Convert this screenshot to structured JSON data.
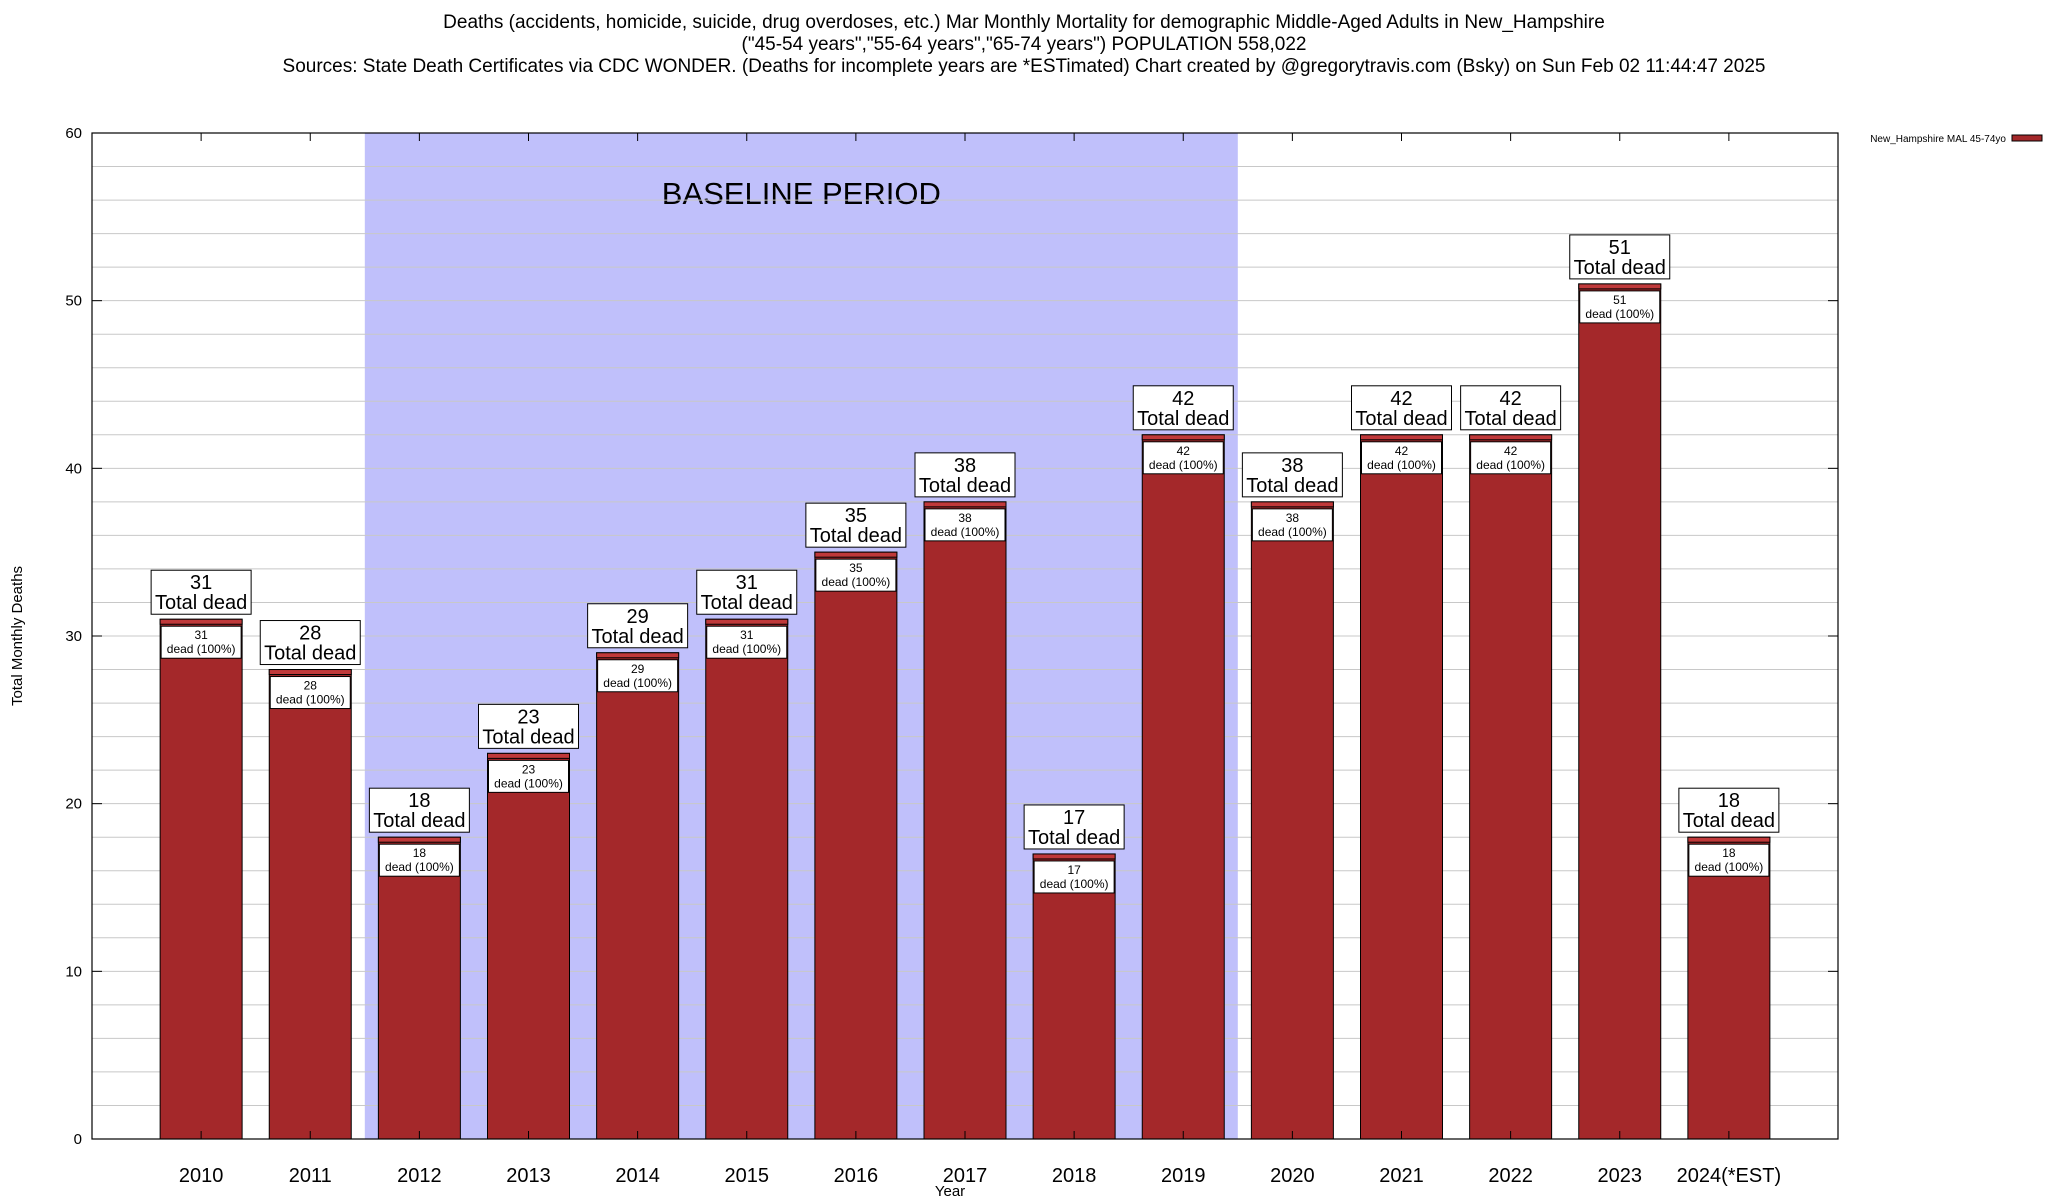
{
  "title_lines": [
    "Deaths (accidents, homicide, suicide, drug overdoses, etc.) Mar Monthly Mortality for demographic Middle-Aged Adults in New_Hampshire",
    "(\"45-54 years\",\"55-64 years\",\"65-74 years\") POPULATION 558,022",
    "Sources: State Death Certificates via CDC WONDER. (Deaths for incomplete years are *ESTimated)                Chart created by @gregorytravis.com (Bsky) on Sun Feb 02 11:44:47 2025"
  ],
  "chart_data": {
    "type": "bar",
    "categories": [
      "2010",
      "2011",
      "2012",
      "2013",
      "2014",
      "2015",
      "2016",
      "2017",
      "2018",
      "2019",
      "2020",
      "2021",
      "2022",
      "2023",
      "2024(*EST)"
    ],
    "series": [
      {
        "name": "New_Hampshire MAL 45-74yo",
        "values": [
          31,
          28,
          18,
          23,
          29,
          31,
          35,
          38,
          17,
          42,
          38,
          42,
          42,
          51,
          18
        ]
      }
    ],
    "total_label": "Total dead",
    "inner_label_text": "dead (100%)",
    "xlabel": "Year",
    "ylabel": "Total Monthly Deaths",
    "ylim": [
      0,
      60
    ],
    "yticks": [
      0,
      10,
      20,
      30,
      40,
      50,
      60
    ],
    "minor_grid_step": 2,
    "grid": true,
    "legend_position": "top-right",
    "baseline_period": {
      "label": "BASELINE PERIOD",
      "start": "2012",
      "end": "2019"
    },
    "colors": {
      "bar": "#a4282a",
      "bar_cap": "#c0393a",
      "baseline": "#c0c0fb",
      "grid": "#c8c8c8"
    }
  }
}
